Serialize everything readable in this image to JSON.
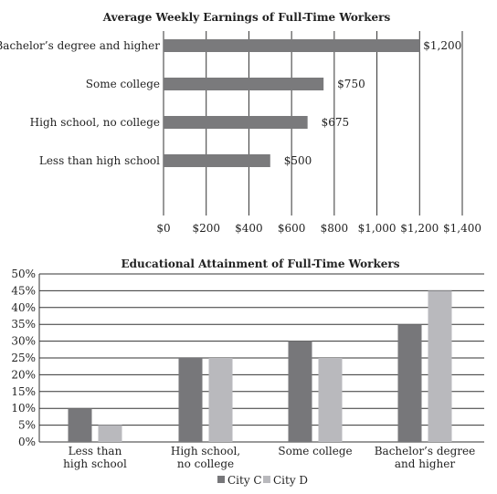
{
  "chart_data": [
    {
      "type": "bar",
      "orientation": "horizontal",
      "title": "Average Weekly Earnings of Full-Time Workers",
      "categories": [
        "Bachelor’s degree and higher",
        "Some college",
        "High school, no college",
        "Less than high school"
      ],
      "values": [
        1200,
        750,
        675,
        500
      ],
      "value_labels": [
        "$1,200",
        "$750",
        "$675",
        "$500"
      ],
      "xlim": [
        0,
        1400
      ],
      "x_ticks": [
        0,
        200,
        400,
        600,
        800,
        1000,
        1200,
        1400
      ],
      "x_tick_labels": [
        "$0",
        "$200",
        "$400",
        "$600",
        "$800",
        "$1,000",
        "$1,200",
        "$1,400"
      ],
      "grid": "vertical",
      "bar_color": "#7a7a7c"
    },
    {
      "type": "bar",
      "orientation": "vertical",
      "title": "Educational Attainment of Full-Time Workers",
      "categories": [
        [
          "Less than",
          "high school"
        ],
        [
          "High school,",
          "no college"
        ],
        [
          "Some college"
        ],
        [
          "Bachelor’s degree",
          "and higher"
        ]
      ],
      "series": [
        {
          "name": "City C",
          "values": [
            10,
            25,
            30,
            35
          ],
          "color": "#77777a"
        },
        {
          "name": "City D",
          "values": [
            5,
            25,
            25,
            45
          ],
          "color": "#b9b9bd"
        }
      ],
      "ylim": [
        0,
        50
      ],
      "y_ticks": [
        0,
        5,
        10,
        15,
        20,
        25,
        30,
        35,
        40,
        45,
        50
      ],
      "y_tick_labels": [
        "0%",
        "5%",
        "10%",
        "15%",
        "20%",
        "25%",
        "30%",
        "35%",
        "40%",
        "45%",
        "50%"
      ],
      "grid": "horizontal",
      "legend_position": "bottom-center"
    }
  ]
}
